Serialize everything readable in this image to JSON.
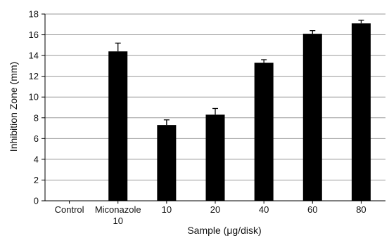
{
  "chart_data": {
    "type": "bar",
    "title": "",
    "xlabel": "Sample (μg/disk)",
    "ylabel": "Inhibition Zone (mm)",
    "ylim": [
      0,
      18
    ],
    "yticks": [
      "0",
      "2",
      "4",
      "6",
      "8",
      "10",
      "12",
      "14",
      "16",
      "18"
    ],
    "grid": "horizontal",
    "legend": "none",
    "bar_color": "#000000",
    "categories": [
      {
        "line1": "Control",
        "line2": ""
      },
      {
        "line1": "Miconazole",
        "line2": "10"
      },
      {
        "line1": "10",
        "line2": ""
      },
      {
        "line1": "20",
        "line2": ""
      },
      {
        "line1": "40",
        "line2": ""
      },
      {
        "line1": "60",
        "line2": ""
      },
      {
        "line1": "80",
        "line2": ""
      }
    ],
    "values": [
      0,
      14.4,
      7.3,
      8.3,
      13.3,
      16.1,
      17.1
    ],
    "errors": [
      0,
      0.8,
      0.5,
      0.6,
      0.3,
      0.3,
      0.3
    ]
  }
}
